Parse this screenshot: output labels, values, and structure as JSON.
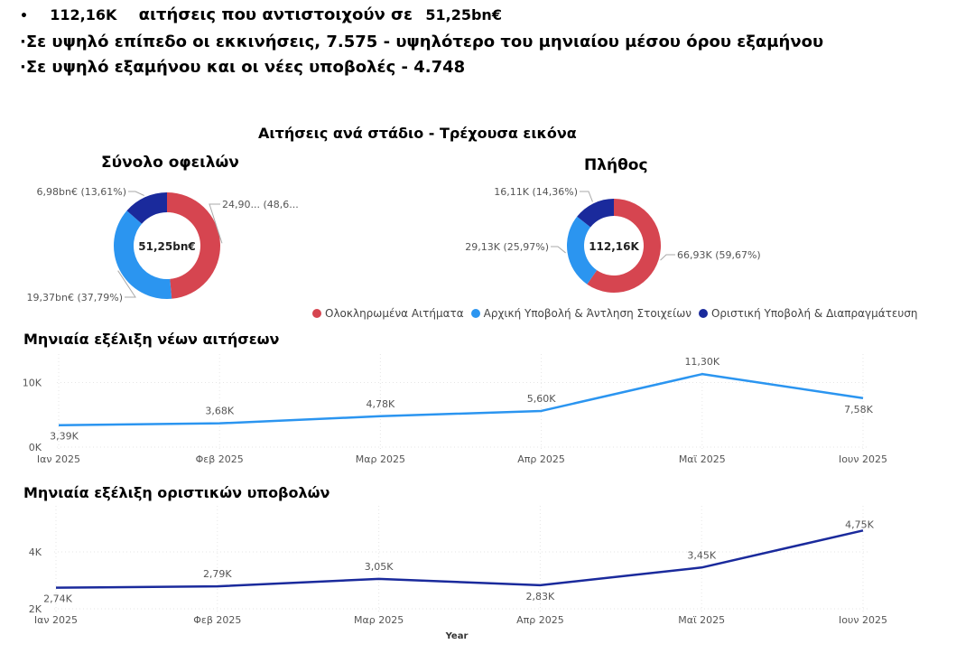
{
  "summary": {
    "line1": {
      "bullet": "•",
      "count": "112,16K",
      "text": "αιτήσεις που αντιστοιχούν σε",
      "amount": "51,25bn€"
    },
    "line2": {
      "bullet": "·",
      "text": "Σε υψηλό επίπεδο οι εκκινήσεις, 7.575 -  υψηλότερο του μηνιαίου μέσου όρου εξαμήνου"
    },
    "line3": {
      "bullet": "·",
      "text": "Σε υψηλό εξαμήνου και οι νέες υποβολές - 4.748"
    }
  },
  "donuts_section_title": "Αιτήσεις ανά στάδιο - Τρέχουσα εικόνα",
  "colors": {
    "red": "#D64550",
    "lightblue": "#2B95F0",
    "darkblue": "#1A2A9C",
    "line1": "#2B95F0",
    "line2": "#1A2A9C"
  },
  "legend": [
    {
      "label": "Ολοκληρωμένα Αιτήματα",
      "color": "#D64550"
    },
    {
      "label": "Αρχική Υποβολή & Άντληση Στοιχείων",
      "color": "#2B95F0"
    },
    {
      "label": "Οριστική Υποβολή & Διαπραγμάτευση",
      "color": "#1A2A9C"
    }
  ],
  "chart_data": [
    {
      "type": "pie",
      "title": "Σύνολο οφειλών",
      "center_label": "51,25bn€",
      "slices": [
        {
          "label": "24,90... (48,6...",
          "value": 48.6,
          "color": "#D64550"
        },
        {
          "label": "19,37bn€ (37,79%)",
          "value": 37.79,
          "color": "#2B95F0"
        },
        {
          "label": "6,98bn€ (13,61%)",
          "value": 13.61,
          "color": "#1A2A9C"
        }
      ]
    },
    {
      "type": "pie",
      "title": "Πλήθος",
      "center_label": "112,16K",
      "slices": [
        {
          "label": "66,93K (59,67%)",
          "value": 59.67,
          "color": "#D64550"
        },
        {
          "label": "29,13K (25,97%)",
          "value": 25.97,
          "color": "#2B95F0"
        },
        {
          "label": "16,11K (14,36%)",
          "value": 14.36,
          "color": "#1A2A9C"
        }
      ]
    },
    {
      "type": "line",
      "title": "Μηνιαία εξέλιξη νέων αιτήσεων",
      "categories": [
        "Ιαν 2025",
        "Φεβ 2025",
        "Μαρ 2025",
        "Απρ 2025",
        "Μαϊ 2025",
        "Ιουν 2025"
      ],
      "values": [
        3390,
        3680,
        4780,
        5600,
        11300,
        7580
      ],
      "data_labels": [
        "3,39K",
        "3,68K",
        "4,78K",
        "5,60K",
        "11,30K",
        "7,58K"
      ],
      "y_ticks": [
        {
          "value": 0,
          "label": "0K"
        },
        {
          "value": 10000,
          "label": "10K"
        }
      ],
      "ylim": [
        0,
        13000
      ],
      "color": "#2B95F0"
    },
    {
      "type": "line",
      "title": "Μηνιαία εξέλιξη οριστικών υποβολών",
      "categories": [
        "Ιαν 2025",
        "Φεβ 2025",
        "Μαρ 2025",
        "Απρ 2025",
        "Μαϊ 2025",
        "Ιουν 2025"
      ],
      "values": [
        2740,
        2790,
        3050,
        2830,
        3450,
        4750
      ],
      "data_labels": [
        "2,74K",
        "2,79K",
        "3,05K",
        "2,83K",
        "3,45K",
        "4,75K"
      ],
      "y_ticks": [
        {
          "value": 2000,
          "label": "2K"
        },
        {
          "value": 4000,
          "label": "4K"
        }
      ],
      "ylim": [
        2000,
        5300
      ],
      "xlabel": "Year",
      "color": "#1A2A9C"
    }
  ]
}
